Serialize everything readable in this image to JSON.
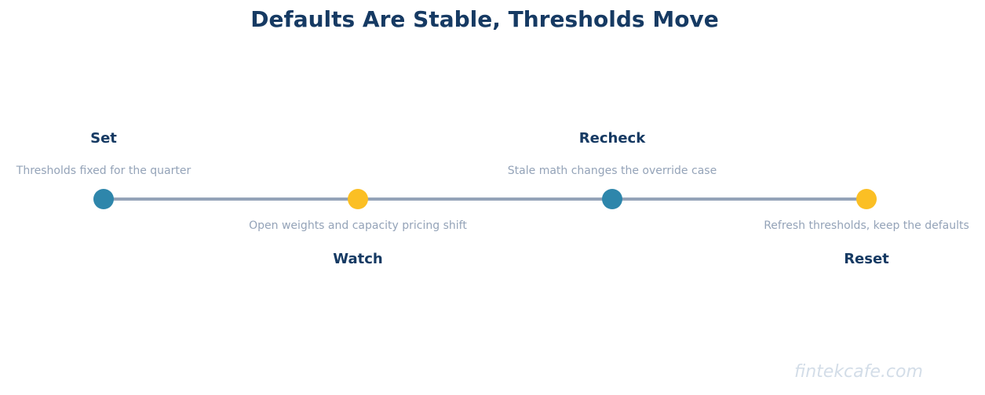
{
  "title": "Defaults Are Stable, Thresholds Move",
  "colors": {
    "title": "#163a63",
    "line": "#94a3b8",
    "marker_primary": "#2e86ab",
    "marker_secondary": "#fbbf24",
    "desc": "#94a3b8",
    "watermark": "#d3dde8"
  },
  "steps": [
    {
      "label": "Set",
      "description": "Thresholds fixed for the quarter",
      "side": "above",
      "marker": "primary"
    },
    {
      "label": "Watch",
      "description": "Open weights and capacity pricing shift",
      "side": "below",
      "marker": "secondary"
    },
    {
      "label": "Recheck",
      "description": "Stale math changes the override case",
      "side": "above",
      "marker": "primary"
    },
    {
      "label": "Reset",
      "description": "Refresh thresholds, keep the defaults",
      "side": "below",
      "marker": "secondary"
    }
  ],
  "watermark": "fintekcafe.com"
}
